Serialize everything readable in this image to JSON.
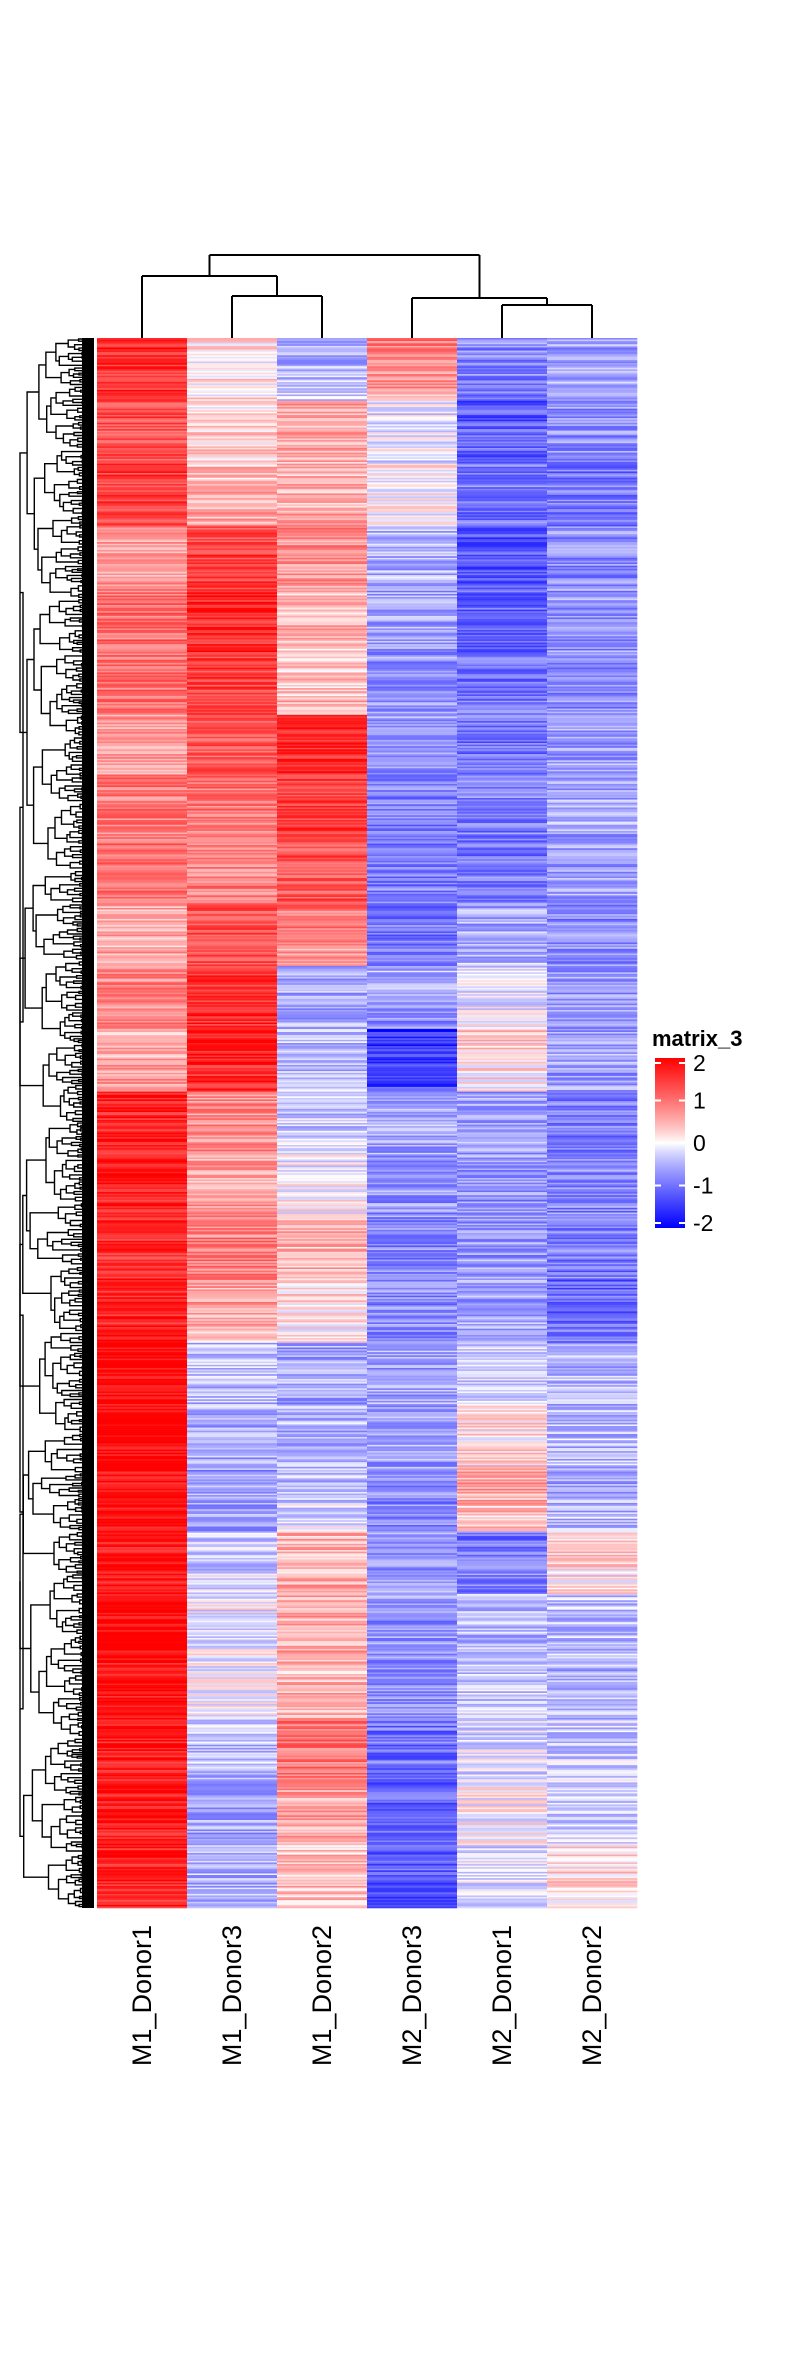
{
  "chart_data": {
    "type": "heatmap",
    "columns": [
      "M1_Donor1",
      "M1_Donor3",
      "M1_Donor2",
      "M2_Donor3",
      "M2_Donor1",
      "M2_Donor2"
    ],
    "row_blocks": [
      {
        "rows": 40,
        "values": [
          1.6,
          0.1,
          -0.6,
          0.9,
          -0.8,
          -0.6
        ]
      },
      {
        "rows": 40,
        "values": [
          1.3,
          0.2,
          0.6,
          -0.2,
          -1.2,
          -0.7
        ]
      },
      {
        "rows": 40,
        "values": [
          1.5,
          0.4,
          0.5,
          0.1,
          -0.9,
          -1.0
        ]
      },
      {
        "rows": 40,
        "values": [
          0.6,
          1.4,
          0.8,
          -0.5,
          -1.3,
          -0.8
        ]
      },
      {
        "rows": 40,
        "values": [
          1.0,
          1.7,
          0.5,
          -0.6,
          -1.1,
          -0.7
        ]
      },
      {
        "rows": 40,
        "values": [
          1.1,
          1.5,
          0.2,
          -0.7,
          -1.0,
          -0.8
        ]
      },
      {
        "rows": 40,
        "values": [
          0.7,
          1.2,
          1.6,
          -0.7,
          -1.0,
          -0.7
        ]
      },
      {
        "rows": 40,
        "values": [
          0.9,
          1.0,
          1.5,
          -0.9,
          -0.9,
          -0.6
        ]
      },
      {
        "rows": 40,
        "values": [
          1.0,
          0.8,
          1.3,
          -0.9,
          -1.0,
          -0.6
        ]
      },
      {
        "rows": 40,
        "values": [
          0.5,
          1.3,
          1.0,
          -1.0,
          -0.6,
          -0.8
        ]
      },
      {
        "rows": 40,
        "values": [
          0.9,
          1.6,
          -0.6,
          -0.5,
          -0.2,
          -0.7
        ]
      },
      {
        "rows": 40,
        "values": [
          0.4,
          1.8,
          -0.4,
          -1.6,
          0.3,
          -0.6
        ]
      },
      {
        "rows": 40,
        "values": [
          1.7,
          0.8,
          -0.4,
          -0.6,
          -0.6,
          -0.9
        ]
      },
      {
        "rows": 40,
        "values": [
          1.8,
          0.6,
          -0.1,
          -0.7,
          -0.7,
          -0.8
        ]
      },
      {
        "rows": 40,
        "values": [
          1.6,
          0.9,
          0.5,
          -0.8,
          -0.7,
          -0.9
        ]
      },
      {
        "rows": 40,
        "values": [
          1.7,
          0.7,
          0.3,
          -0.8,
          -0.6,
          -1.1
        ]
      },
      {
        "rows": 40,
        "values": [
          2.0,
          -0.4,
          -0.6,
          -0.6,
          -0.3,
          -0.5
        ]
      },
      {
        "rows": 40,
        "values": [
          2.0,
          -0.5,
          -0.5,
          -0.6,
          0.1,
          -0.4
        ]
      },
      {
        "rows": 40,
        "values": [
          1.9,
          -0.7,
          -0.4,
          -0.8,
          0.7,
          -0.6
        ]
      },
      {
        "rows": 40,
        "values": [
          1.8,
          -0.3,
          0.5,
          -0.7,
          -1.0,
          0.3
        ]
      },
      {
        "rows": 40,
        "values": [
          2.0,
          -0.1,
          0.6,
          -0.7,
          -0.5,
          -0.4
        ]
      },
      {
        "rows": 40,
        "values": [
          1.9,
          0.0,
          0.4,
          -0.8,
          -0.4,
          -0.5
        ]
      },
      {
        "rows": 40,
        "values": [
          1.8,
          -0.4,
          1.0,
          -1.0,
          -0.2,
          -0.3
        ]
      },
      {
        "rows": 40,
        "values": [
          1.8,
          -0.6,
          0.6,
          -1.1,
          0.0,
          -0.4
        ]
      },
      {
        "rows": 40,
        "values": [
          1.7,
          -0.5,
          0.4,
          -1.2,
          -0.2,
          0.2
        ]
      }
    ],
    "color_scale": {
      "title": "matrix_3",
      "breaks": [
        2,
        1,
        0,
        -1,
        -2
      ],
      "colors": [
        "#ff0000",
        "#ffffff",
        "#0000ff"
      ],
      "range": [
        -2,
        2
      ]
    },
    "dendrogram": {
      "columns": {
        "merges": [
          [
            4,
            5
          ],
          [
            1,
            2
          ],
          [
            3,
            "M2_Donor1+M2_Donor2"
          ],
          [
            0,
            "M1_Donor3+M1_Donor2"
          ],
          [
            "M1",
            "M2"
          ]
        ]
      },
      "rows": "clustered"
    }
  }
}
